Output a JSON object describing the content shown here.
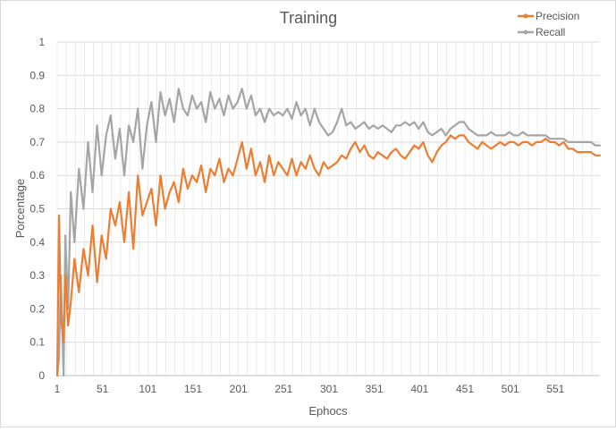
{
  "chart_data": {
    "type": "line",
    "title": "Training",
    "xlabel": "Ephocs",
    "ylabel": "Porcentage",
    "xlim": [
      1,
      600
    ],
    "ylim": [
      0,
      1
    ],
    "x_ticks": [
      "1",
      "51",
      "101",
      "151",
      "201",
      "251",
      "301",
      "351",
      "401",
      "451",
      "501",
      "551"
    ],
    "y_ticks": [
      "0",
      "0.1",
      "0.2",
      "0.3",
      "0.4",
      "0.5",
      "0.6",
      "0.7",
      "0.8",
      "0.9",
      "1"
    ],
    "legend_position": "top-right",
    "grid": true,
    "series": [
      {
        "name": "Precision",
        "color": "#ED7D31",
        "x": [
          1,
          3,
          5,
          8,
          10,
          13,
          16,
          20,
          25,
          30,
          35,
          40,
          45,
          50,
          55,
          60,
          65,
          70,
          75,
          80,
          85,
          90,
          95,
          100,
          105,
          110,
          115,
          120,
          125,
          130,
          135,
          140,
          145,
          150,
          155,
          160,
          165,
          170,
          175,
          180,
          185,
          190,
          195,
          200,
          205,
          210,
          215,
          220,
          225,
          230,
          235,
          240,
          245,
          250,
          255,
          260,
          265,
          270,
          275,
          280,
          285,
          290,
          295,
          300,
          305,
          310,
          315,
          320,
          325,
          330,
          335,
          340,
          345,
          350,
          355,
          360,
          365,
          370,
          375,
          380,
          385,
          390,
          395,
          400,
          405,
          410,
          415,
          420,
          425,
          430,
          435,
          440,
          445,
          450,
          455,
          460,
          465,
          470,
          475,
          480,
          485,
          490,
          495,
          500,
          505,
          510,
          515,
          520,
          525,
          530,
          535,
          540,
          545,
          550,
          555,
          560,
          565,
          570,
          575,
          580,
          585,
          590,
          595,
          600
        ],
        "values": [
          0.0,
          0.48,
          0.18,
          0.1,
          0.3,
          0.15,
          0.22,
          0.35,
          0.25,
          0.38,
          0.3,
          0.45,
          0.28,
          0.42,
          0.35,
          0.5,
          0.45,
          0.52,
          0.4,
          0.55,
          0.38,
          0.6,
          0.48,
          0.52,
          0.56,
          0.45,
          0.6,
          0.5,
          0.55,
          0.58,
          0.52,
          0.62,
          0.56,
          0.6,
          0.58,
          0.63,
          0.55,
          0.62,
          0.6,
          0.65,
          0.58,
          0.62,
          0.6,
          0.65,
          0.7,
          0.62,
          0.68,
          0.6,
          0.64,
          0.58,
          0.66,
          0.6,
          0.64,
          0.62,
          0.6,
          0.65,
          0.6,
          0.64,
          0.62,
          0.66,
          0.62,
          0.6,
          0.64,
          0.62,
          0.63,
          0.64,
          0.66,
          0.65,
          0.68,
          0.7,
          0.67,
          0.69,
          0.66,
          0.65,
          0.67,
          0.66,
          0.65,
          0.67,
          0.68,
          0.66,
          0.65,
          0.67,
          0.69,
          0.68,
          0.7,
          0.66,
          0.64,
          0.67,
          0.69,
          0.7,
          0.72,
          0.71,
          0.72,
          0.72,
          0.7,
          0.69,
          0.68,
          0.7,
          0.69,
          0.68,
          0.69,
          0.7,
          0.69,
          0.7,
          0.7,
          0.69,
          0.7,
          0.7,
          0.69,
          0.7,
          0.7,
          0.71,
          0.7,
          0.7,
          0.69,
          0.7,
          0.68,
          0.68,
          0.67,
          0.67,
          0.67,
          0.67,
          0.66,
          0.66
        ]
      },
      {
        "name": "Recall",
        "color": "#A5A5A5",
        "x": [
          1,
          3,
          5,
          8,
          10,
          13,
          16,
          20,
          25,
          30,
          35,
          40,
          45,
          50,
          55,
          60,
          65,
          70,
          75,
          80,
          85,
          90,
          95,
          100,
          105,
          110,
          115,
          120,
          125,
          130,
          135,
          140,
          145,
          150,
          155,
          160,
          165,
          170,
          175,
          180,
          185,
          190,
          195,
          200,
          205,
          210,
          215,
          220,
          225,
          230,
          235,
          240,
          245,
          250,
          255,
          260,
          265,
          270,
          275,
          280,
          285,
          290,
          295,
          300,
          305,
          310,
          315,
          320,
          325,
          330,
          335,
          340,
          345,
          350,
          355,
          360,
          365,
          370,
          375,
          380,
          385,
          390,
          395,
          400,
          405,
          410,
          415,
          420,
          425,
          430,
          435,
          440,
          445,
          450,
          455,
          460,
          465,
          470,
          475,
          480,
          485,
          490,
          495,
          500,
          505,
          510,
          515,
          520,
          525,
          530,
          535,
          540,
          545,
          550,
          555,
          560,
          565,
          570,
          575,
          580,
          585,
          590,
          595,
          600
        ],
        "values": [
          0.0,
          0.05,
          0.3,
          0.0,
          0.42,
          0.2,
          0.55,
          0.4,
          0.62,
          0.5,
          0.7,
          0.55,
          0.75,
          0.6,
          0.72,
          0.78,
          0.65,
          0.74,
          0.6,
          0.75,
          0.7,
          0.8,
          0.62,
          0.75,
          0.82,
          0.7,
          0.85,
          0.78,
          0.83,
          0.76,
          0.86,
          0.8,
          0.78,
          0.84,
          0.8,
          0.82,
          0.76,
          0.85,
          0.8,
          0.83,
          0.78,
          0.84,
          0.8,
          0.82,
          0.86,
          0.8,
          0.84,
          0.78,
          0.8,
          0.76,
          0.8,
          0.78,
          0.79,
          0.78,
          0.8,
          0.77,
          0.82,
          0.78,
          0.8,
          0.75,
          0.8,
          0.76,
          0.74,
          0.72,
          0.73,
          0.76,
          0.8,
          0.75,
          0.76,
          0.74,
          0.75,
          0.76,
          0.74,
          0.75,
          0.74,
          0.75,
          0.74,
          0.73,
          0.75,
          0.75,
          0.76,
          0.75,
          0.76,
          0.74,
          0.76,
          0.73,
          0.72,
          0.73,
          0.74,
          0.72,
          0.74,
          0.75,
          0.76,
          0.76,
          0.74,
          0.73,
          0.72,
          0.72,
          0.72,
          0.73,
          0.72,
          0.72,
          0.72,
          0.73,
          0.72,
          0.72,
          0.73,
          0.72,
          0.72,
          0.72,
          0.72,
          0.72,
          0.71,
          0.71,
          0.71,
          0.71,
          0.7,
          0.7,
          0.7,
          0.7,
          0.7,
          0.7,
          0.69,
          0.69
        ]
      }
    ]
  }
}
